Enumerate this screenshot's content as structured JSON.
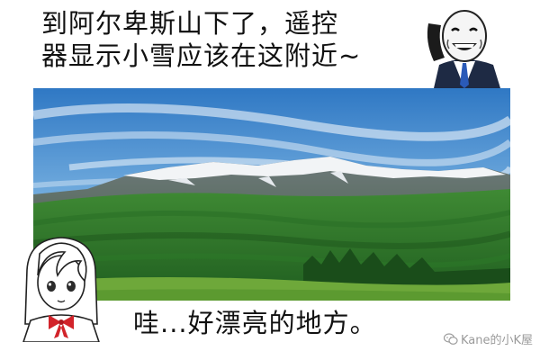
{
  "caption_top": {
    "line1": "到阿尔卑斯山下了，遥控",
    "line2": "器显示小雪应该在这附近~"
  },
  "caption_bottom": "哇...好漂亮的地方。",
  "watermark": {
    "text": "Kane的小K屋",
    "icon": "wechat-icon"
  },
  "image": {
    "subject": "mountain-landscape"
  },
  "colors": {
    "sky_top": "#2f78c4",
    "sky_bottom": "#cfe6f6",
    "forest": "#2f7a2a",
    "meadow": "#6ea83a",
    "snow": "#f2f4f6",
    "ribbon": "#d2232a"
  }
}
